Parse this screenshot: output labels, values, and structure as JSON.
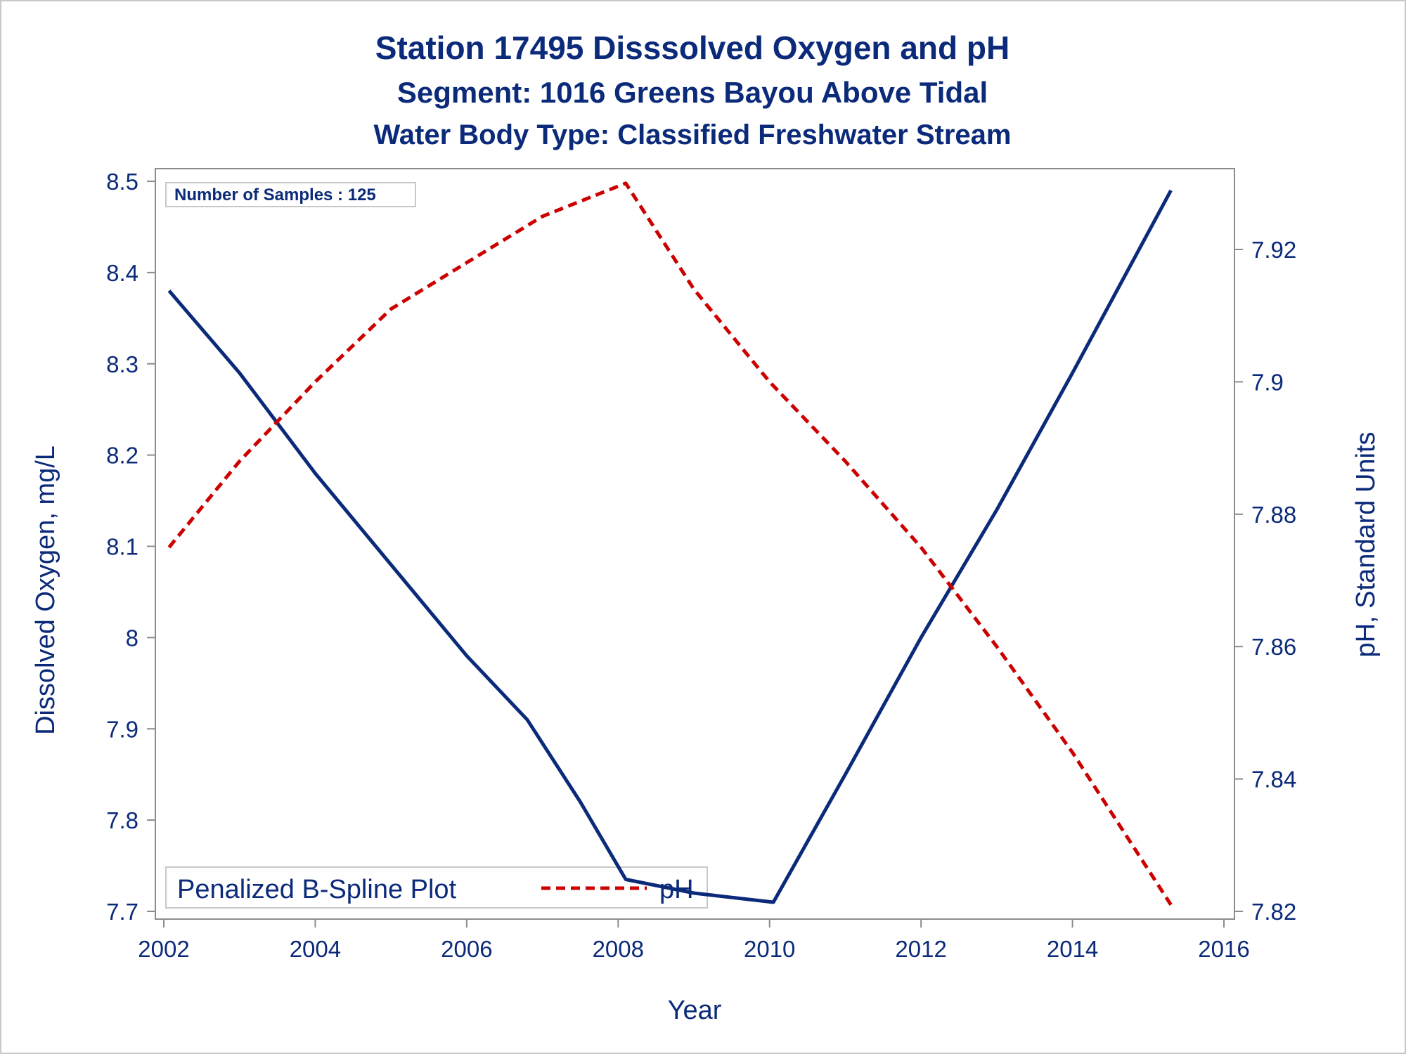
{
  "titles": {
    "line1": "Station 17495   Disssolved Oxygen and pH",
    "line2": "Segment: 1016  Greens Bayou Above Tidal",
    "line3": "Water Body Type: Classified Freshwater Stream"
  },
  "inset": {
    "samples_label": "Number of Samples : 125"
  },
  "legend": {
    "title": "Penalized B-Spline Plot",
    "entries": [
      {
        "label": "pH",
        "style": "dashed",
        "color": "#cc0000"
      }
    ]
  },
  "colors": {
    "text": "#0b2a7a",
    "do_line": "#0b2a7a",
    "ph_line": "#cc0000",
    "axis": "#8c8c8c",
    "frame": "#c8c8c8"
  },
  "chart_data": {
    "type": "line",
    "xlabel": "Year",
    "ylabel": "Dissolved Oxygen, mg/L",
    "y2label": "pH, Standard Units",
    "xlim": [
      2002,
      2016
    ],
    "ylim": [
      7.7,
      8.5
    ],
    "y2lim": [
      7.82,
      7.93
    ],
    "x_ticks": [
      "2002",
      "2004",
      "2006",
      "2008",
      "2010",
      "2012",
      "2014",
      "2016"
    ],
    "y_ticks": [
      "8.5",
      "8.4",
      "8.3",
      "8.2",
      "8.1",
      "8",
      "7.9",
      "7.8",
      "7.7"
    ],
    "y2_ticks": [
      "7.92",
      "7.9",
      "7.88",
      "7.86",
      "7.84",
      "7.82"
    ],
    "grid": false,
    "legend_position": "bottom-left",
    "series": [
      {
        "axis": "left",
        "style": "solid",
        "x": [
          2002.07,
          2003.0,
          2004.0,
          2005.0,
          2006.0,
          2006.8,
          2007.5,
          2008.1,
          2009.0,
          2010.05,
          2011.0,
          2012.0,
          2013.0,
          2014.0,
          2015.3
        ],
        "y": [
          8.38,
          8.29,
          8.18,
          8.08,
          7.98,
          7.91,
          7.82,
          7.735,
          7.72,
          7.71,
          7.85,
          8.0,
          8.14,
          8.29,
          8.49
        ]
      },
      {
        "name": "pH",
        "axis": "right",
        "style": "dashed",
        "x": [
          2002.07,
          2003.0,
          2004.0,
          2005.0,
          2006.0,
          2007.0,
          2008.1,
          2009.0,
          2010.0,
          2011.0,
          2012.0,
          2013.0,
          2014.0,
          2015.3
        ],
        "y": [
          7.875,
          7.888,
          7.9,
          7.911,
          7.918,
          7.925,
          7.93,
          7.914,
          7.9,
          7.888,
          7.875,
          7.86,
          7.844,
          7.821
        ]
      }
    ]
  }
}
